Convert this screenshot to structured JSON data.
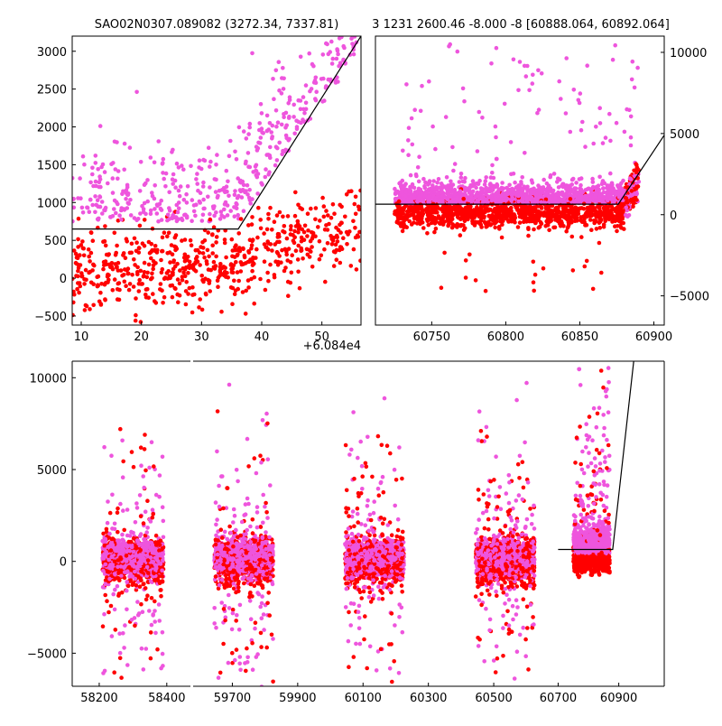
{
  "title_left": "SAO02N0307.089082 (3272.34, 7337.81)",
  "title_right": "3 1231 2600.46 -8.000 -8 [60888.064, 60892.064]",
  "colors": {
    "point_red": "#ff0000",
    "point_pink": "#ee55dd",
    "fit_line": "#000000"
  },
  "chart_data": [
    {
      "id": "top-left",
      "type": "scatter",
      "xlim": [
        8.5,
        56.5
      ],
      "ylim": [
        -620,
        3200
      ],
      "x_offset_label": "+6.084e4",
      "xticks": [
        10,
        20,
        30,
        40,
        50
      ],
      "xtick_labels": [
        "10",
        "20",
        "30",
        "40",
        "50"
      ],
      "yticks": [
        -500,
        0,
        500,
        1000,
        1500,
        2000,
        2500,
        3000
      ],
      "ytick_labels": [
        "−500",
        "0",
        "500",
        "1000",
        "1500",
        "2000",
        "2500",
        "3000"
      ],
      "fit_line": [
        [
          8.5,
          650
        ],
        [
          36.1,
          650
        ],
        [
          56.5,
          3200
        ]
      ],
      "grid": false
    },
    {
      "id": "top-right",
      "type": "scatter",
      "xlim": [
        60712,
        60907
      ],
      "ylim": [
        -6800,
        11000
      ],
      "xticks": [
        60750,
        60800,
        60850,
        60900
      ],
      "xtick_labels": [
        "60750",
        "60800",
        "60850",
        "60900"
      ],
      "yticks": [
        -5000,
        0,
        5000,
        10000
      ],
      "ytick_labels": [
        "−5000",
        "0",
        "5000",
        "10000"
      ],
      "y_axis_side": "right",
      "fit_line": [
        [
          60712,
          650
        ],
        [
          60876,
          650
        ],
        [
          60907,
          4900
        ]
      ],
      "grid": false
    },
    {
      "id": "bottom",
      "type": "scatter",
      "ylim": [
        -6800,
        10900
      ],
      "yticks": [
        -5000,
        0,
        5000,
        10000
      ],
      "ytick_labels": [
        "−5000",
        "0",
        "5000",
        "10000"
      ],
      "segments": [
        {
          "xlim": [
            58120,
            58470
          ],
          "xticks": [
            58200,
            58400
          ],
          "xtick_labels": [
            "58200",
            "58400"
          ],
          "clusters": [
            58300
          ]
        },
        {
          "xlim": [
            59580,
            60660
          ],
          "xticks": [
            59700,
            59900,
            60100,
            60300,
            60500
          ],
          "xtick_labels": [
            "59700",
            "59900",
            "60100",
            "60300",
            "60500"
          ],
          "clusters": [
            59735,
            60135,
            60535
          ]
        },
        {
          "xlim": [
            60660,
            61050
          ],
          "xticks": [
            60700,
            60900
          ],
          "xtick_labels": [
            "60700",
            "60900"
          ],
          "clusters": [
            60810
          ]
        }
      ],
      "fit_line": [
        [
          60700,
          650
        ],
        [
          60880,
          650
        ],
        [
          60950,
          11000
        ]
      ],
      "grid": false
    }
  ]
}
